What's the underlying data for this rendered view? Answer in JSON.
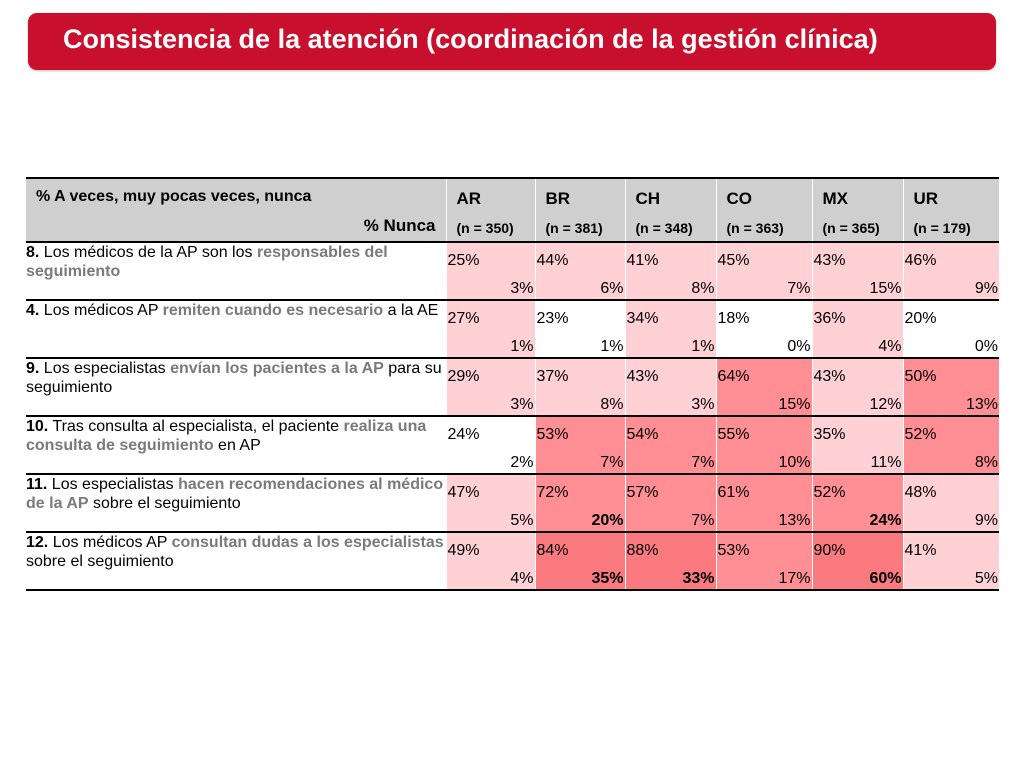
{
  "title": "Consistencia de la atención (coordinación de la gestión clínica)",
  "header": {
    "row_label_main": "% A veces, muy pocas veces, nunca",
    "row_label_sub": "% Nunca",
    "countries": [
      {
        "code": "AR",
        "n": "(n = 350)"
      },
      {
        "code": "BR",
        "n": "(n = 381)"
      },
      {
        "code": "CH",
        "n": "(n = 348)"
      },
      {
        "code": "CO",
        "n": "(n = 363)"
      },
      {
        "code": "MX",
        "n": "(n = 365)"
      },
      {
        "code": "UR",
        "n": "(n = 179)"
      }
    ]
  },
  "colors": {
    "banner": "#c8102e",
    "header_bg": "#cfcfcf",
    "level_0": "#ffffff",
    "level_1": "#ffd1d4",
    "level_2": "#ffbfc3",
    "level_3": "#ff8f94",
    "level_4": "#fa7a80",
    "highlight_text": "#7a7a7a"
  },
  "rows": [
    {
      "label": [
        {
          "text": "8.",
          "style": "num"
        },
        {
          "text": " Los médicos de la AP son los ",
          "style": ""
        },
        {
          "text": "responsables del seguimiento",
          "style": "hl"
        }
      ],
      "cells": [
        {
          "top": "25%",
          "bottom": "3%",
          "level": 1,
          "bold": false
        },
        {
          "top": "44%",
          "bottom": "6%",
          "level": 1,
          "bold": false
        },
        {
          "top": "41%",
          "bottom": "8%",
          "level": 1,
          "bold": false
        },
        {
          "top": "45%",
          "bottom": "7%",
          "level": 1,
          "bold": false
        },
        {
          "top": "43%",
          "bottom": "15%",
          "level": 1,
          "bold": false
        },
        {
          "top": "46%",
          "bottom": "9%",
          "level": 1,
          "bold": false
        }
      ]
    },
    {
      "label": [
        {
          "text": "4.",
          "style": "num"
        },
        {
          "text": " Los médicos AP ",
          "style": ""
        },
        {
          "text": "remiten cuando es necesario",
          "style": "hl"
        },
        {
          "text": " a la AE",
          "style": ""
        }
      ],
      "cells": [
        {
          "top": "27%",
          "bottom": "1%",
          "level": 1,
          "bold": false
        },
        {
          "top": "23%",
          "bottom": "1%",
          "level": 0,
          "bold": false
        },
        {
          "top": "34%",
          "bottom": "1%",
          "level": 1,
          "bold": false
        },
        {
          "top": "18%",
          "bottom": "0%",
          "level": 0,
          "bold": false
        },
        {
          "top": "36%",
          "bottom": "4%",
          "level": 1,
          "bold": false
        },
        {
          "top": "20%",
          "bottom": "0%",
          "level": 0,
          "bold": false
        }
      ]
    },
    {
      "label": [
        {
          "text": "9.",
          "style": "num"
        },
        {
          "text": " Los especialistas ",
          "style": ""
        },
        {
          "text": "envían los pacientes a la AP",
          "style": "hl"
        },
        {
          "text": " para su seguimiento",
          "style": ""
        }
      ],
      "cells": [
        {
          "top": "29%",
          "bottom": "3%",
          "level": 1,
          "bold": false
        },
        {
          "top": "37%",
          "bottom": "8%",
          "level": 1,
          "bold": false
        },
        {
          "top": "43%",
          "bottom": "3%",
          "level": 1,
          "bold": false
        },
        {
          "top": "64%",
          "bottom": "15%",
          "level": 3,
          "bold": false
        },
        {
          "top": "43%",
          "bottom": "12%",
          "level": 1,
          "bold": false
        },
        {
          "top": "50%",
          "bottom": "13%",
          "level": 3,
          "bold": false
        }
      ]
    },
    {
      "label": [
        {
          "text": "10.",
          "style": "num"
        },
        {
          "text": " Tras consulta al especialista, el paciente ",
          "style": ""
        },
        {
          "text": "realiza una consulta de seguimiento",
          "style": "hl"
        },
        {
          "text": " en AP",
          "style": ""
        }
      ],
      "cells": [
        {
          "top": "24%",
          "bottom": "2%",
          "level": 0,
          "bold": false
        },
        {
          "top": "53%",
          "bottom": "7%",
          "level": 3,
          "bold": false
        },
        {
          "top": "54%",
          "bottom": "7%",
          "level": 3,
          "bold": false
        },
        {
          "top": "55%",
          "bottom": "10%",
          "level": 3,
          "bold": false
        },
        {
          "top": "35%",
          "bottom": "11%",
          "level": 1,
          "bold": false
        },
        {
          "top": "52%",
          "bottom": "8%",
          "level": 3,
          "bold": false
        }
      ]
    },
    {
      "label": [
        {
          "text": "11.",
          "style": "num"
        },
        {
          "text": " Los especialistas ",
          "style": ""
        },
        {
          "text": "hacen recomendaciones al médico de la AP",
          "style": "hl"
        },
        {
          "text": " sobre el seguimiento",
          "style": ""
        }
      ],
      "cells": [
        {
          "top": "47%",
          "bottom": "5%",
          "level": 1,
          "bold": false
        },
        {
          "top": "72%",
          "bottom": "20%",
          "level": 3,
          "bold": true
        },
        {
          "top": "57%",
          "bottom": "7%",
          "level": 3,
          "bold": false
        },
        {
          "top": "61%",
          "bottom": "13%",
          "level": 3,
          "bold": false
        },
        {
          "top": "52%",
          "bottom": "24%",
          "level": 3,
          "bold": true
        },
        {
          "top": "48%",
          "bottom": "9%",
          "level": 1,
          "bold": false
        }
      ]
    },
    {
      "label": [
        {
          "text": "12.",
          "style": "num"
        },
        {
          "text": " Los médicos AP ",
          "style": ""
        },
        {
          "text": "consultan dudas a los especialistas",
          "style": "hl"
        },
        {
          "text": " sobre el seguimiento",
          "style": ""
        }
      ],
      "cells": [
        {
          "top": "49%",
          "bottom": "4%",
          "level": 1,
          "bold": false
        },
        {
          "top": "84%",
          "bottom": "35%",
          "level": 4,
          "bold": true
        },
        {
          "top": "88%",
          "bottom": "33%",
          "level": 4,
          "bold": true
        },
        {
          "top": "53%",
          "bottom": "17%",
          "level": 3,
          "bold": false
        },
        {
          "top": "90%",
          "bottom": "60%",
          "level": 4,
          "bold": true
        },
        {
          "top": "41%",
          "bottom": "5%",
          "level": 1,
          "bold": false
        }
      ]
    }
  ]
}
